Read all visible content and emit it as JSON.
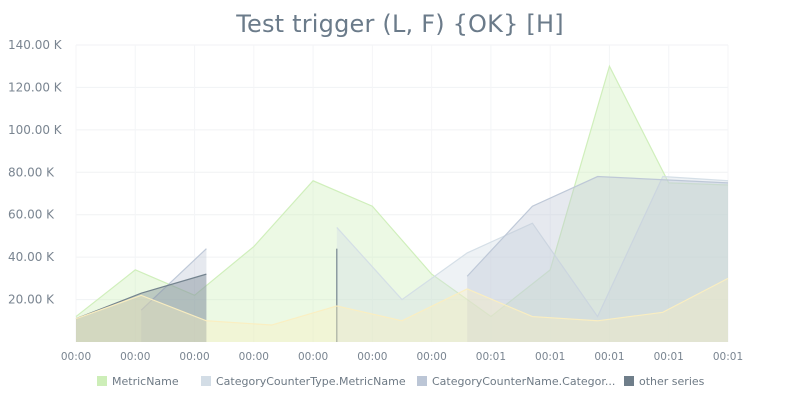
{
  "chart_data": {
    "type": "area",
    "title": "Test trigger (L, F) {OK} [H]",
    "xlabel": "",
    "ylabel": "",
    "ylim": [
      0,
      140000
    ],
    "y_ticks": [
      20000,
      40000,
      60000,
      80000,
      100000,
      120000,
      140000
    ],
    "y_tick_labels": [
      "20.00 K",
      "40.00 K",
      "60.00 K",
      "80.00 K",
      "100.00 K",
      "120.00 K",
      "140.00 K"
    ],
    "x": [
      0,
      1,
      2,
      3,
      4,
      5,
      6,
      7,
      8,
      9,
      10,
      11
    ],
    "x_tick_labels": [
      "00:00",
      "00:00",
      "00:00",
      "00:00",
      "00:00",
      "00:00",
      "00:00",
      "00:01",
      "00:01",
      "00:01",
      "00:01",
      "00:01"
    ],
    "legend_position": "bottom",
    "grid": true,
    "series": [
      {
        "name": "MetricName",
        "color": "#cdeeb8",
        "points": [
          [
            0,
            12000
          ],
          [
            1,
            34000
          ],
          [
            2,
            22000
          ],
          [
            3,
            45000
          ],
          [
            4,
            76000
          ],
          [
            5,
            64000
          ],
          [
            6,
            32000
          ],
          [
            7,
            12000
          ],
          [
            8,
            34000
          ],
          [
            9,
            130000
          ],
          [
            10,
            75000
          ],
          [
            11,
            74000
          ]
        ]
      },
      {
        "name": "CategoryCounterType.MetricName",
        "color": "#d3dde6",
        "segments": [
          [
            [
              4.4,
              54000
            ],
            [
              5.5,
              20000
            ],
            [
              6.6,
              42000
            ],
            [
              7.7,
              56000
            ],
            [
              8.8,
              12000
            ],
            [
              9.9,
              78000
            ],
            [
              11,
              76000
            ]
          ]
        ]
      },
      {
        "name": "CategoryCounterName.Categor...",
        "color": "#bcc6d6",
        "segments": [
          [
            [
              1.1,
              15000
            ],
            [
              2.2,
              44000
            ]
          ],
          [
            [
              6.6,
              31000
            ],
            [
              7.7,
              64000
            ],
            [
              8.8,
              78000
            ],
            [
              11,
              75000
            ]
          ]
        ]
      },
      {
        "name": "other series",
        "color": "#6f7e8a",
        "segments": [
          [
            [
              0,
              11000
            ],
            [
              1.1,
              23000
            ],
            [
              2.2,
              32000
            ]
          ],
          [
            [
              4.4,
              44000
            ],
            [
              4.4,
              0
            ]
          ]
        ]
      },
      {
        "name": "",
        "color": "#fbeec0",
        "points": [
          [
            0,
            11000
          ],
          [
            1.1,
            22000
          ],
          [
            2.2,
            10000
          ],
          [
            3.3,
            8000
          ],
          [
            4.4,
            17000
          ],
          [
            5.5,
            10000
          ],
          [
            6.6,
            25000
          ],
          [
            7.7,
            12000
          ],
          [
            8.8,
            10000
          ],
          [
            9.9,
            14000
          ],
          [
            11,
            30000
          ]
        ]
      }
    ]
  }
}
